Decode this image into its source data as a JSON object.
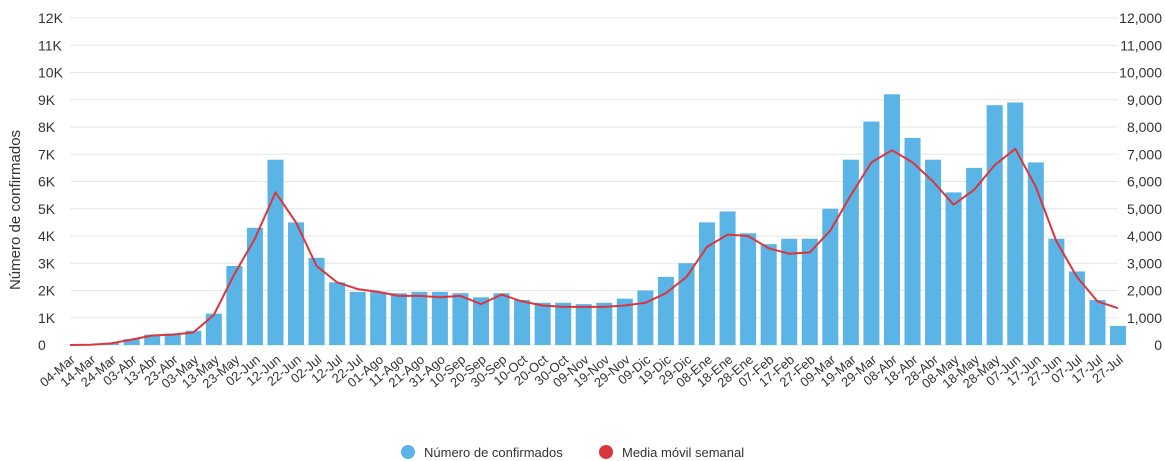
{
  "chart_data": {
    "type": "bar",
    "title": "",
    "ylabel": "Número de confirmados",
    "xlabel": "",
    "ylim": [
      0,
      12000
    ],
    "y_ticks_left": [
      "0",
      "1K",
      "2K",
      "3K",
      "4K",
      "5K",
      "6K",
      "7K",
      "8K",
      "9K",
      "10K",
      "11K",
      "12K"
    ],
    "y_ticks_right": [
      "0",
      "1,000",
      "2,000",
      "3,000",
      "4,000",
      "5,000",
      "6,000",
      "7,000",
      "8,000",
      "9,000",
      "10,000",
      "11,000",
      "12,000"
    ],
    "grid": true,
    "legend_position": "bottom-center",
    "categories": [
      "04-Mar",
      "14-Mar",
      "24-Mar",
      "03-Abr",
      "13-Abr",
      "23-Abr",
      "03-May",
      "13-May",
      "23-May",
      "02-Jun",
      "12-Jun",
      "22-Jun",
      "02-Jul",
      "12-Jul",
      "22-Jul",
      "01-Ago",
      "11-Ago",
      "21-Ago",
      "31-Ago",
      "10-Sep",
      "20-Sep",
      "30-Sep",
      "10-Oct",
      "20-Oct",
      "30-Oct",
      "09-Nov",
      "19-Nov",
      "29-Nov",
      "09-Dic",
      "19-Dic",
      "29-Dic",
      "08-Ene",
      "18-Ene",
      "28-Ene",
      "07-Feb",
      "17-Feb",
      "27-Feb",
      "09-Mar",
      "19-Mar",
      "29-Mar",
      "08-Abr",
      "18-Abr",
      "28-Abr",
      "08-May",
      "18-May",
      "28-May",
      "07-Jun",
      "17-Jun",
      "27-Jun",
      "07-Jul",
      "17-Jul",
      "27-Jul"
    ],
    "series": [
      {
        "name": "Número de confirmados",
        "type": "bar",
        "color": "#5ab4e5",
        "values": [
          5,
          20,
          80,
          220,
          380,
          420,
          520,
          1150,
          2900,
          4300,
          6800,
          4500,
          3200,
          2300,
          1950,
          1950,
          1900,
          1950,
          1950,
          1900,
          1750,
          1900,
          1650,
          1550,
          1550,
          1500,
          1550,
          1700,
          2000,
          2500,
          3000,
          4500,
          4900,
          4100,
          3700,
          3900,
          3900,
          5000,
          6800,
          8200,
          9200,
          7600,
          6800,
          5600,
          6500,
          8800,
          8900,
          6700,
          3900,
          2700,
          1650,
          700
        ]
      },
      {
        "name": "Media móvil semanal",
        "type": "line",
        "color": "#d9363e",
        "values": [
          0,
          10,
          60,
          200,
          350,
          380,
          460,
          1100,
          2600,
          3900,
          5600,
          4500,
          2900,
          2300,
          2050,
          1950,
          1800,
          1800,
          1750,
          1800,
          1500,
          1850,
          1600,
          1450,
          1400,
          1400,
          1400,
          1450,
          1550,
          1900,
          2500,
          3600,
          4050,
          4000,
          3550,
          3350,
          3400,
          4200,
          5500,
          6700,
          7150,
          6700,
          6000,
          5150,
          5700,
          6600,
          7200,
          5800,
          3800,
          2500,
          1600,
          1350
        ]
      }
    ]
  }
}
